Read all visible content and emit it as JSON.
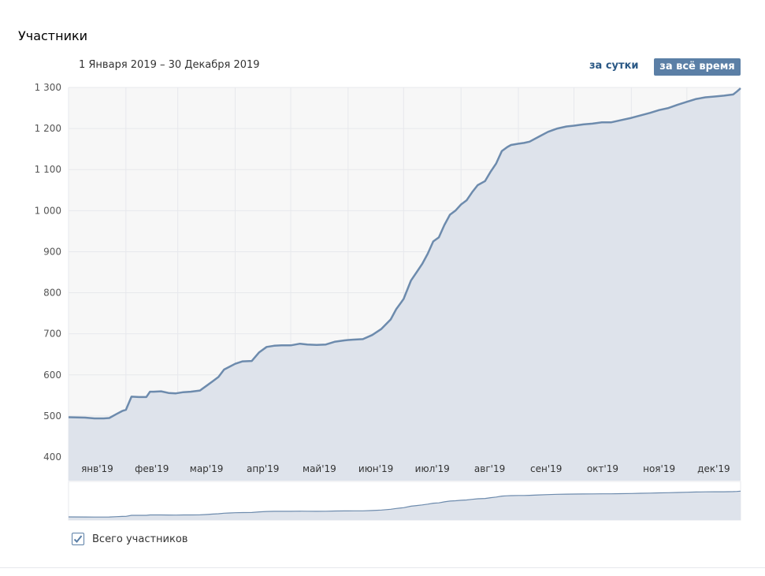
{
  "header": {
    "title": "Участники",
    "date_range": "1 Января 2019 – 30 Декабря 2019",
    "btn_day": "за сутки",
    "btn_all": "за всё время"
  },
  "legend": {
    "label": "Всего участников",
    "checked": true
  },
  "colors": {
    "line": "#6d8bad",
    "fill": "#dee3eb",
    "plot_bg": "#f7f7f7",
    "grid": "#e7e8ec",
    "accent": "#5b7fa6"
  },
  "chart_data": {
    "type": "area",
    "title": "",
    "xlabel": "",
    "ylabel": "",
    "ylim": [
      400,
      1300
    ],
    "yticks": [
      400,
      500,
      600,
      700,
      800,
      900,
      1000,
      1100,
      1200,
      1300
    ],
    "ytick_labels": [
      "400",
      "500",
      "600",
      "700",
      "800",
      "900",
      "1 000",
      "1 100",
      "1 200",
      "1 300"
    ],
    "xlim": [
      1,
      364
    ],
    "month_starts": [
      1,
      32,
      60,
      91,
      121,
      152,
      182,
      213,
      244,
      274,
      305,
      335
    ],
    "month_labels": [
      "янв'19",
      "фев'19",
      "мар'19",
      "апр'19",
      "май'19",
      "июн'19",
      "июл'19",
      "авг'19",
      "сен'19",
      "окт'19",
      "ноя'19",
      "дек'19"
    ],
    "grid": true,
    "series": [
      {
        "name": "Всего участников",
        "x": [
          1,
          10,
          15,
          20,
          23,
          27,
          30,
          32,
          35,
          39,
          43,
          45,
          47,
          51,
          55,
          59,
          63,
          67,
          72,
          76,
          79,
          82,
          85,
          88,
          91,
          95,
          100,
          104,
          108,
          112,
          116,
          121,
          126,
          130,
          135,
          140,
          145,
          150,
          152,
          155,
          160,
          165,
          170,
          175,
          178,
          182,
          186,
          189,
          192,
          195,
          198,
          201,
          204,
          207,
          210,
          213,
          216,
          219,
          222,
          226,
          229,
          232,
          235,
          238,
          240,
          244,
          247,
          250,
          255,
          260,
          265,
          270,
          274,
          279,
          284,
          289,
          294,
          299,
          305,
          310,
          315,
          320,
          325,
          330,
          335,
          340,
          345,
          350,
          355,
          360,
          362,
          364
        ],
        "values": [
          497,
          496,
          494,
          494,
          495,
          505,
          512,
          515,
          547,
          546,
          546,
          559,
          559,
          560,
          556,
          555,
          558,
          559,
          562,
          575,
          585,
          595,
          613,
          620,
          627,
          633,
          634,
          655,
          668,
          671,
          672,
          672,
          676,
          674,
          673,
          674,
          681,
          684,
          685,
          686,
          687,
          697,
          712,
          735,
          760,
          785,
          830,
          850,
          870,
          895,
          925,
          935,
          965,
          990,
          1000,
          1015,
          1025,
          1045,
          1062,
          1072,
          1095,
          1115,
          1145,
          1155,
          1160,
          1163,
          1165,
          1168,
          1180,
          1192,
          1200,
          1205,
          1207,
          1210,
          1212,
          1215,
          1215,
          1220,
          1226,
          1232,
          1238,
          1245,
          1250,
          1258,
          1265,
          1272,
          1276,
          1278,
          1280,
          1283,
          1290,
          1298
        ]
      }
    ]
  }
}
